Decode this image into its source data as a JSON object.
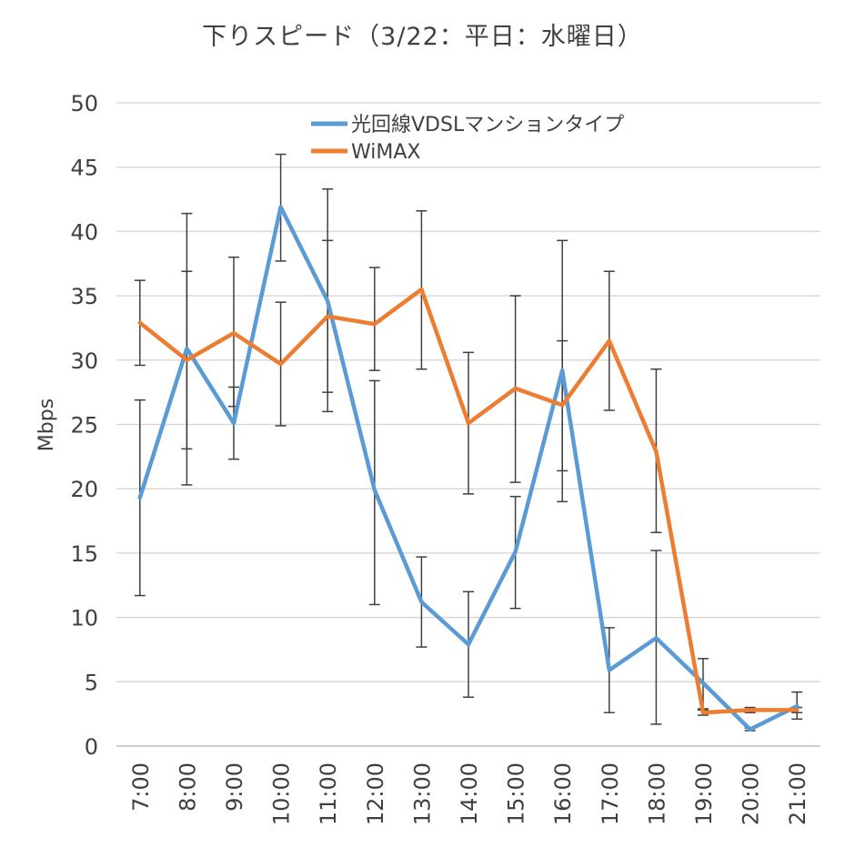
{
  "chart_data": {
    "type": "line",
    "title": "下りスピード（3/22：平日：水曜日）",
    "ylabel": "Mbps",
    "xlabel": "",
    "ylim": [
      0,
      50
    ],
    "yticks": [
      0,
      5,
      10,
      15,
      20,
      25,
      30,
      35,
      40,
      45,
      50
    ],
    "categories": [
      "7:00",
      "8:00",
      "9:00",
      "10:00",
      "11:00",
      "12:00",
      "13:00",
      "14:00",
      "15:00",
      "16:00",
      "17:00",
      "18:00",
      "19:00",
      "20:00",
      "21:00"
    ],
    "grid": true,
    "legend_position": "top-right",
    "series": [
      {
        "name": "光回線VDSLマンションタイプ",
        "color": "#5B9BD5",
        "values": [
          19.3,
          30.9,
          25.1,
          41.9,
          34.6,
          19.9,
          11.2,
          7.9,
          15.1,
          29.2,
          5.9,
          8.4,
          4.9,
          1.3,
          3.1
        ],
        "error_low": [
          11.7,
          20.3,
          22.3,
          37.7,
          26.0,
          11.0,
          7.7,
          3.8,
          10.7,
          19.0,
          2.6,
          1.7,
          2.9,
          1.2,
          2.1
        ],
        "error_high": [
          26.9,
          41.4,
          27.9,
          46.0,
          43.3,
          28.4,
          14.7,
          12.0,
          19.4,
          39.3,
          9.2,
          15.2,
          6.8,
          1.4,
          4.2
        ]
      },
      {
        "name": "WiMAX",
        "color": "#ED7D31",
        "values": [
          32.9,
          30.0,
          32.1,
          29.7,
          33.4,
          32.8,
          35.5,
          25.1,
          27.8,
          26.5,
          31.5,
          22.9,
          2.6,
          2.8,
          2.8
        ],
        "error_low": [
          29.6,
          23.1,
          26.4,
          24.9,
          27.5,
          29.2,
          29.3,
          19.6,
          20.5,
          21.4,
          26.1,
          16.6,
          2.4,
          2.6,
          2.6
        ],
        "error_high": [
          36.2,
          36.9,
          38.0,
          34.5,
          39.3,
          37.2,
          41.6,
          30.6,
          35.0,
          31.5,
          36.9,
          29.3,
          2.8,
          3.0,
          3.0
        ]
      }
    ]
  }
}
